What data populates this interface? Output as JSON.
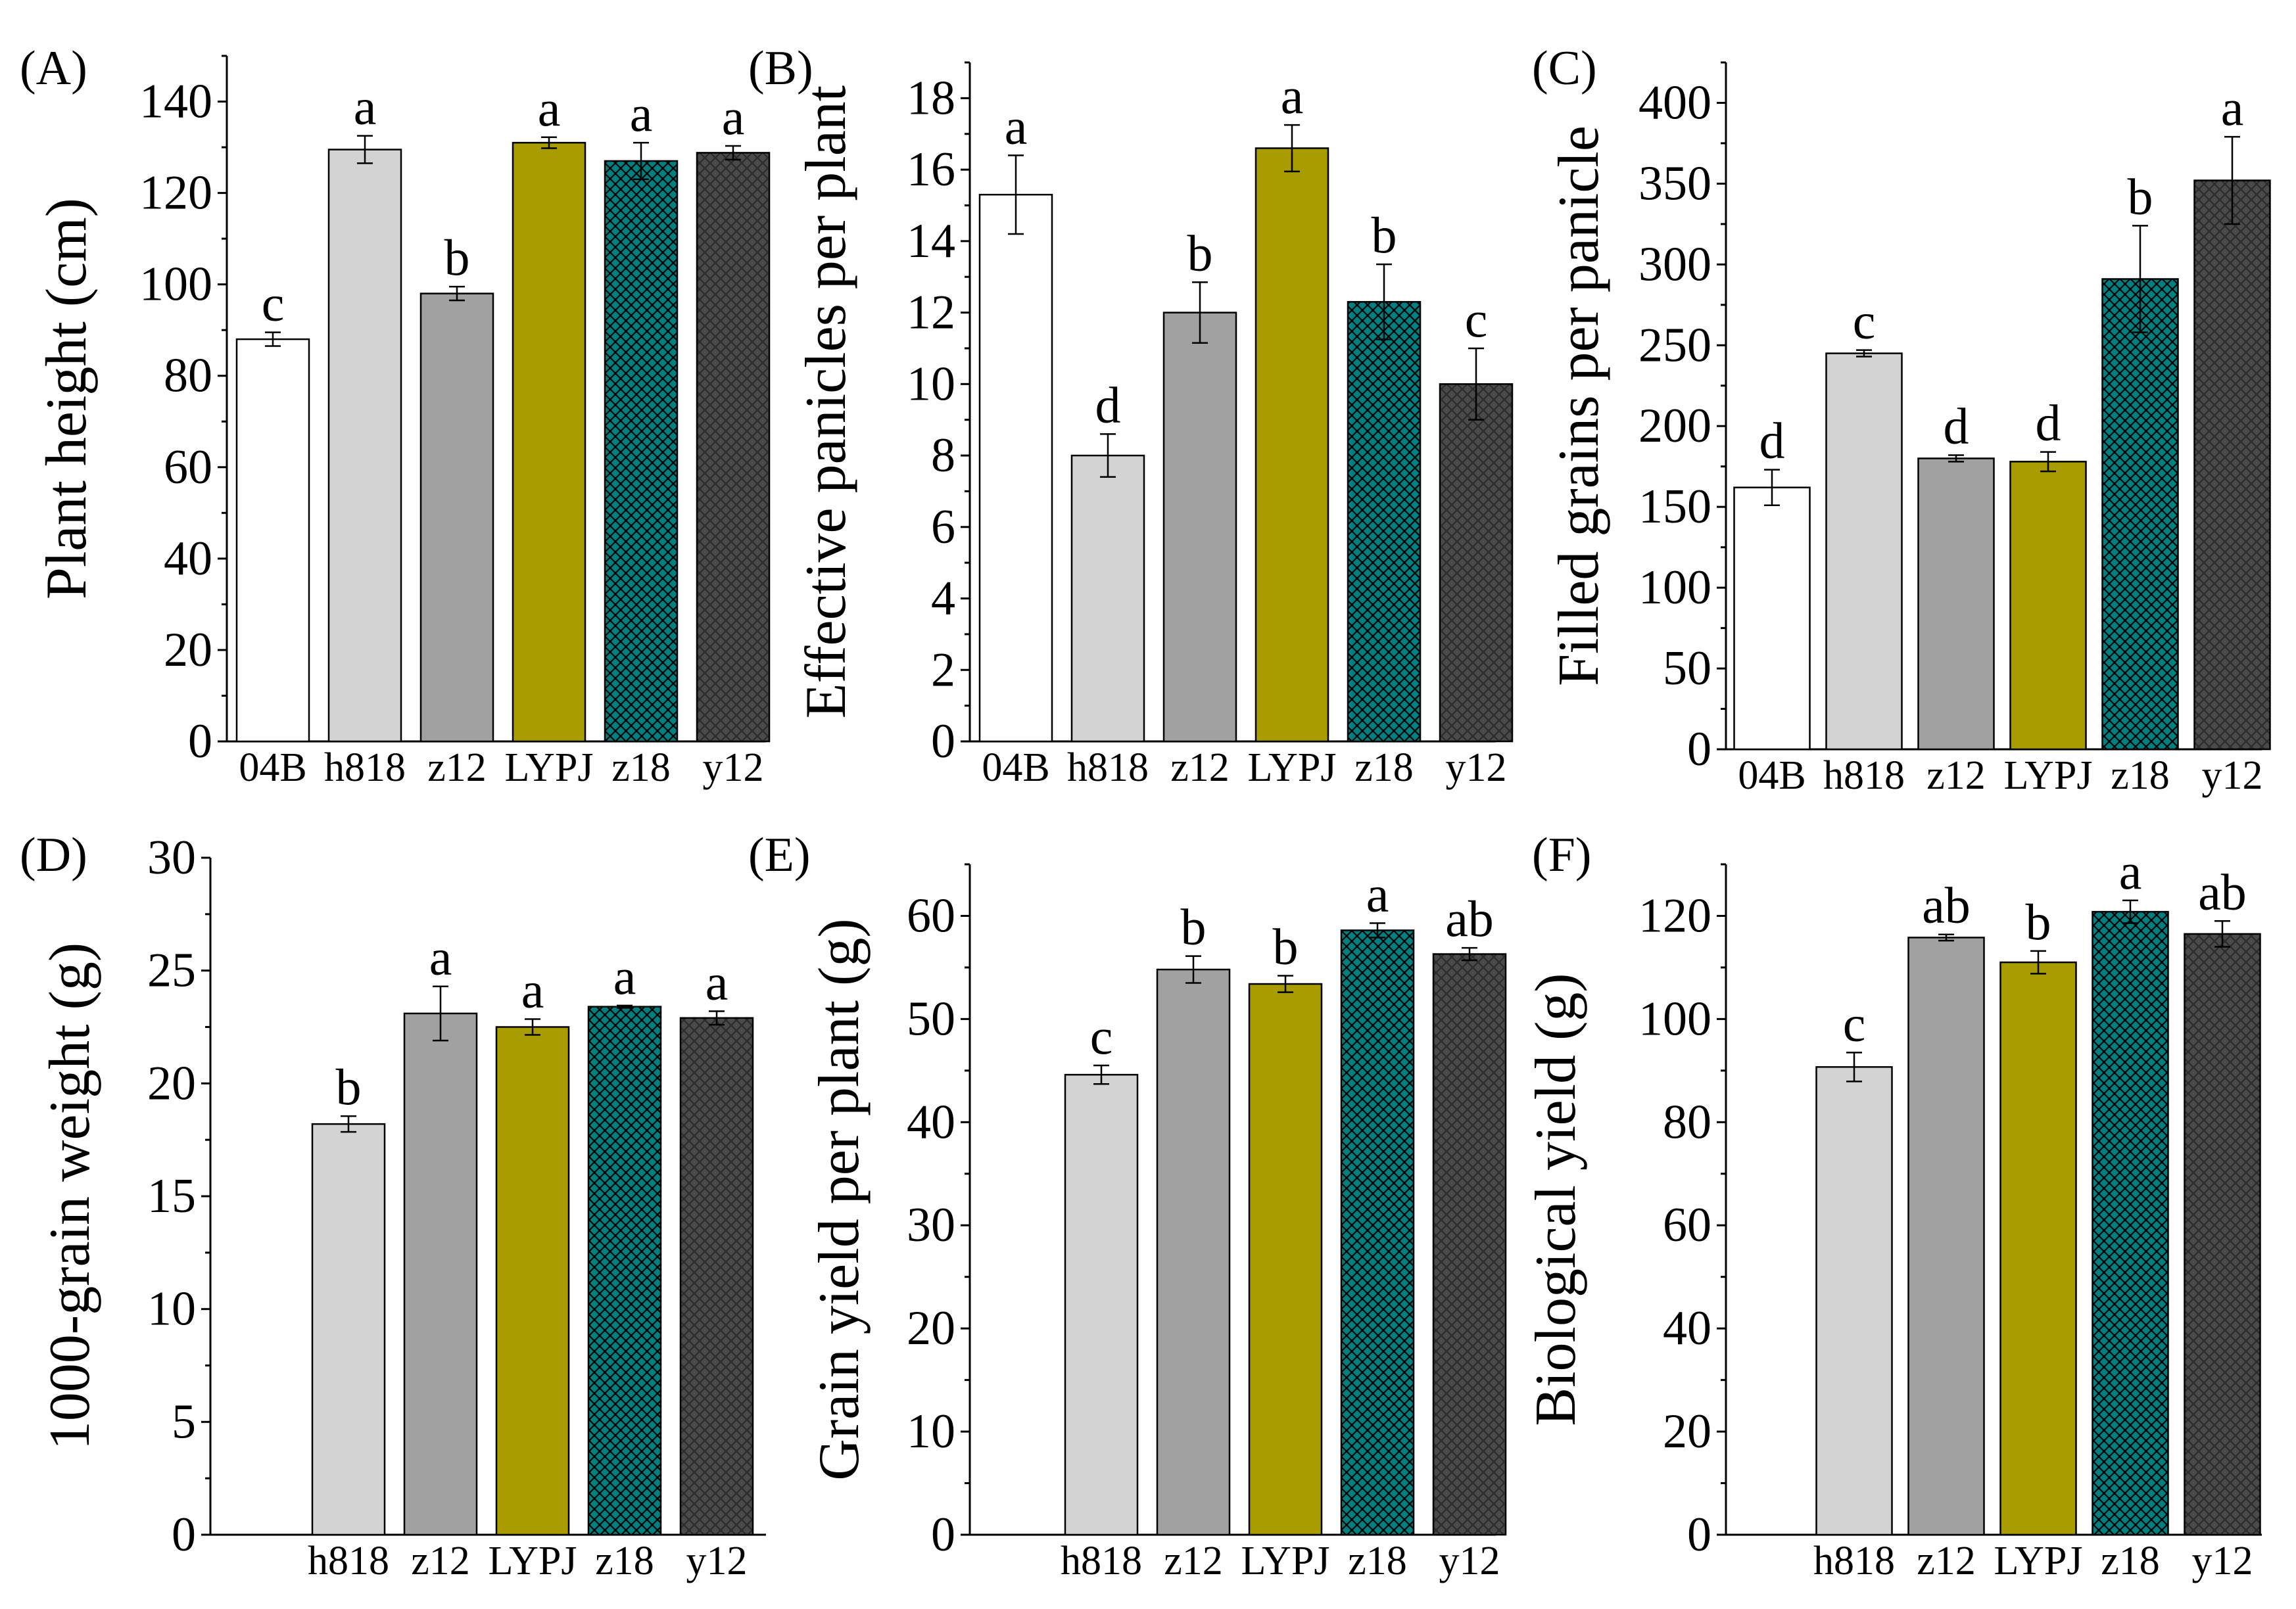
{
  "colors": {
    "04B": "#ffffff",
    "h818": "#d3d3d3",
    "z12": "#a1a1a1",
    "LYPJ": "#a89c00",
    "z18": "#008080",
    "y12": "#4a4a4a",
    "z18_hatch": "#000000",
    "y12_hatch": "#2a2a2a"
  },
  "chart_data": [
    {
      "type": "bar",
      "panel": "(A)",
      "ylabel": "Plant height (cm)",
      "ylim": [
        0,
        150
      ],
      "yticks": [
        0,
        20,
        40,
        60,
        80,
        100,
        120,
        140
      ],
      "categories": [
        "04B",
        "h818",
        "z12",
        "LYPJ",
        "z18",
        "y12"
      ],
      "values": [
        88,
        129.5,
        98,
        131,
        127,
        128.8
      ],
      "errors": [
        1.5,
        3,
        1.5,
        1.2,
        4,
        1.5
      ],
      "letters": [
        "c",
        "a",
        "b",
        "a",
        "a",
        "a"
      ]
    },
    {
      "type": "bar",
      "panel": "(B)",
      "ylabel": "Effective panicles per plant",
      "ylim": [
        0,
        19
      ],
      "yticks": [
        0,
        2,
        4,
        6,
        8,
        10,
        12,
        14,
        16,
        18
      ],
      "categories": [
        "04B",
        "h818",
        "z12",
        "LYPJ",
        "z18",
        "y12"
      ],
      "values": [
        15.3,
        8.0,
        12.0,
        16.6,
        12.3,
        10.0
      ],
      "errors": [
        1.1,
        0.6,
        0.85,
        0.65,
        1.05,
        1.0
      ],
      "letters": [
        "a",
        "d",
        "b",
        "a",
        "b",
        "c"
      ]
    },
    {
      "type": "bar",
      "panel": "(C)",
      "ylabel": "Filled grains per panicle",
      "ylim": [
        0,
        425
      ],
      "yticks": [
        0,
        50,
        100,
        150,
        200,
        250,
        300,
        350,
        400
      ],
      "categories": [
        "04B",
        "h818",
        "z12",
        "LYPJ",
        "z18",
        "y12"
      ],
      "values": [
        162,
        245,
        180,
        178,
        291,
        352
      ],
      "errors": [
        11,
        2,
        2,
        6,
        33,
        27
      ],
      "letters": [
        "d",
        "c",
        "d",
        "d",
        "b",
        "a"
      ]
    },
    {
      "type": "bar",
      "panel": "(D)",
      "ylabel": "1000-grain weight (g)",
      "ylim": [
        0,
        30
      ],
      "yticks": [
        0,
        5,
        10,
        15,
        20,
        25,
        30
      ],
      "categories": [
        "h818",
        "z12",
        "LYPJ",
        "z18",
        "y12"
      ],
      "values": [
        18.2,
        23.1,
        22.5,
        23.4,
        22.9
      ],
      "errors": [
        0.35,
        1.2,
        0.35,
        0.05,
        0.3
      ],
      "letters": [
        "b",
        "a",
        "a",
        "a",
        "a"
      ]
    },
    {
      "type": "bar",
      "panel": "(E)",
      "ylabel": "Grain yield per plant (g)",
      "ylim": [
        0,
        65
      ],
      "yticks": [
        0,
        10,
        20,
        30,
        40,
        50,
        60
      ],
      "categories": [
        "h818",
        "z12",
        "LYPJ",
        "z18",
        "y12"
      ],
      "values": [
        44.6,
        54.8,
        53.4,
        58.6,
        56.3
      ],
      "errors": [
        0.9,
        1.3,
        0.8,
        0.7,
        0.6
      ],
      "letters": [
        "c",
        "b",
        "b",
        "a",
        "ab"
      ]
    },
    {
      "type": "bar",
      "panel": "(F)",
      "ylabel": "Biological yield (g)",
      "ylim": [
        0,
        130
      ],
      "yticks": [
        0,
        20,
        40,
        60,
        80,
        100,
        120
      ],
      "categories": [
        "h818",
        "z12",
        "LYPJ",
        "z18",
        "y12"
      ],
      "values": [
        90.7,
        115.8,
        111.0,
        120.8,
        116.5
      ],
      "errors": [
        2.8,
        0.6,
        2.2,
        2.2,
        2.5
      ],
      "letters": [
        "c",
        "ab",
        "b",
        "a",
        "ab"
      ]
    }
  ]
}
